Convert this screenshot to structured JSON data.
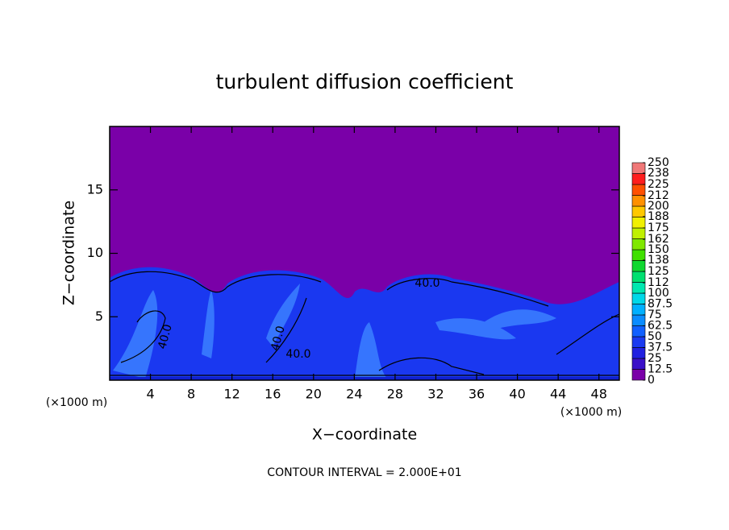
{
  "chart_data": {
    "type": "heatmap",
    "title": "turbulent diffusion coefficient",
    "xlabel": "X−coordinate",
    "ylabel": "Z−coordinate",
    "x_unit_left": "(×1000 m)",
    "x_unit_right": "(×1000 m)",
    "footer": "CONTOUR INTERVAL = 2.000E+01",
    "xlim": [
      0,
      50
    ],
    "xticks": [
      4,
      8,
      12,
      16,
      20,
      24,
      28,
      32,
      36,
      40,
      44,
      48
    ],
    "ylim": [
      0,
      20
    ],
    "yticks": [
      5,
      10,
      15
    ],
    "contour_labels": [
      "40.0",
      "40.0",
      "40.0",
      "40.0"
    ],
    "colorbar": {
      "clim": [
        0,
        250
      ],
      "ticks": [
        0,
        12.5,
        25,
        37.5,
        50,
        62.5,
        75,
        87.5,
        100,
        112,
        125,
        138,
        150,
        162,
        175,
        188,
        200,
        212,
        225,
        238,
        250
      ],
      "colors": [
        "#7a00a8",
        "#3a10c8",
        "#2020e0",
        "#1a3af0",
        "#1060ff",
        "#0a8cff",
        "#00b0ff",
        "#00d8e8",
        "#00e8b0",
        "#00e070",
        "#10d830",
        "#40e000",
        "#80e800",
        "#c0f000",
        "#f0f000",
        "#ffc800",
        "#ff9000",
        "#ff5000",
        "#ff1e1e",
        "#f07878"
      ]
    }
  }
}
